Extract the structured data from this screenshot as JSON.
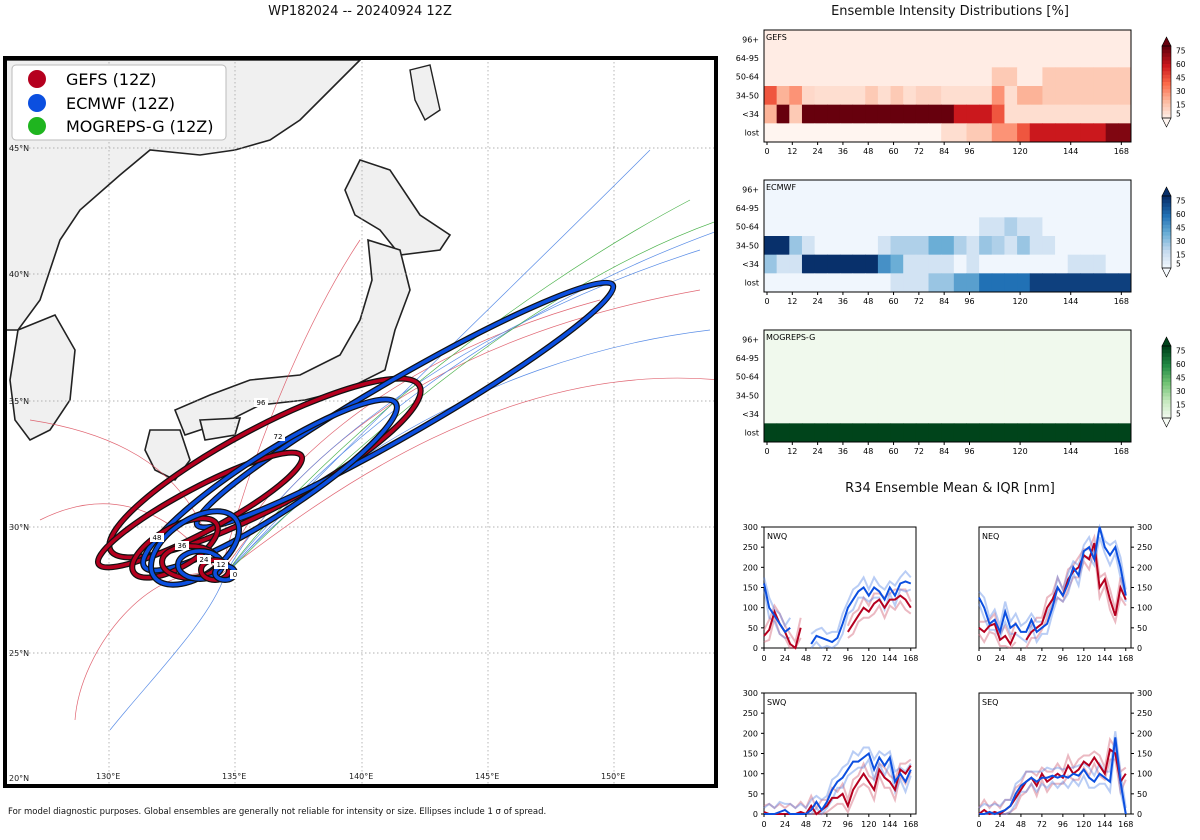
{
  "page": {
    "title": "WP182024 -- 20240924 12Z",
    "footer": "For model diagnostic purposes. Global ensembles are generally not reliable for intensity or size. Ellipses include 1 σ of spread."
  },
  "map": {
    "lat_labels": [
      "45°N",
      "40°N",
      "35°N",
      "30°N",
      "25°N",
      "20°N"
    ],
    "lon_labels": [
      "130°E",
      "135°E",
      "140°E",
      "145°E",
      "150°E"
    ],
    "legend": [
      {
        "label": "GEFS (12Z)",
        "color": "#b5001f"
      },
      {
        "label": "ECMWF (12Z)",
        "color": "#0b4fe0"
      },
      {
        "label": "MOGREPS-G (12Z)",
        "color": "#1fb51f"
      }
    ],
    "ellipse_labels": [
      "96",
      "72",
      "48",
      "36",
      "24",
      "12",
      "0"
    ]
  },
  "intensity": {
    "title": "Ensemble Intensity Distributions [%]",
    "row_labels": [
      "96+",
      "64-95",
      "50-64",
      "34-50",
      "<34",
      "lost"
    ],
    "x_ticks": [
      "0",
      "12",
      "24",
      "36",
      "48",
      "60",
      "72",
      "84",
      "96",
      "120",
      "144",
      "168"
    ],
    "colorbar_ticks": [
      "75",
      "60",
      "45",
      "30",
      "15",
      "5"
    ],
    "panels": [
      {
        "name": "GEFS",
        "palette": "Reds"
      },
      {
        "name": "ECMWF",
        "palette": "Blues"
      },
      {
        "name": "MOGREPS-G",
        "palette": "Greens"
      }
    ]
  },
  "r34": {
    "title": "R34 Ensemble Mean & IQR [nm]",
    "y_ticks": [
      "300",
      "250",
      "200",
      "150",
      "100",
      "50",
      "0"
    ],
    "x_ticks": [
      "0",
      "24",
      "48",
      "72",
      "96",
      "120",
      "144",
      "168"
    ],
    "panels": [
      "NWQ",
      "NEQ",
      "SWQ",
      "SEQ"
    ]
  },
  "chart_data": [
    {
      "type": "heatmap",
      "title": "GEFS",
      "x": [
        0,
        6,
        12,
        18,
        24,
        30,
        36,
        42,
        48,
        54,
        60,
        66,
        72,
        78,
        84,
        90,
        96,
        102,
        108,
        114,
        120,
        126,
        132,
        138,
        144,
        150,
        156,
        162,
        168
      ],
      "rows": [
        "96+",
        "64-95",
        "50-64",
        "34-50",
        "<34",
        "lost"
      ],
      "values": [
        [
          3,
          3,
          3,
          3,
          3,
          3,
          3,
          3,
          3,
          3,
          3,
          3,
          3,
          3,
          3,
          3,
          3,
          3,
          3,
          3,
          3,
          3,
          3,
          3,
          3,
          3,
          3,
          3,
          3
        ],
        [
          3,
          3,
          3,
          3,
          3,
          3,
          3,
          3,
          3,
          3,
          3,
          3,
          3,
          3,
          3,
          3,
          3,
          3,
          3,
          3,
          3,
          3,
          3,
          3,
          3,
          3,
          3,
          3,
          3
        ],
        [
          3,
          3,
          3,
          3,
          3,
          3,
          3,
          3,
          3,
          3,
          3,
          3,
          3,
          3,
          3,
          3,
          3,
          3,
          15,
          15,
          3,
          3,
          15,
          15,
          15,
          15,
          15,
          15,
          15
        ],
        [
          45,
          22,
          30,
          10,
          8,
          8,
          8,
          8,
          15,
          8,
          15,
          8,
          12,
          12,
          8,
          8,
          8,
          8,
          30,
          8,
          22,
          22,
          15,
          15,
          15,
          15,
          15,
          15,
          15
        ],
        [
          22,
          85,
          15,
          85,
          85,
          85,
          85,
          85,
          85,
          85,
          85,
          85,
          85,
          85,
          85,
          60,
          60,
          60,
          45,
          8,
          8,
          8,
          8,
          8,
          8,
          8,
          8,
          8,
          8
        ],
        [
          0,
          0,
          0,
          0,
          0,
          0,
          0,
          0,
          0,
          0,
          0,
          0,
          0,
          0,
          8,
          8,
          15,
          15,
          30,
          30,
          45,
          60,
          60,
          60,
          60,
          60,
          60,
          75,
          75
        ]
      ],
      "xlabel": "",
      "ylabel": ""
    },
    {
      "type": "heatmap",
      "title": "ECMWF",
      "x": [
        0,
        6,
        12,
        18,
        24,
        30,
        36,
        42,
        48,
        54,
        60,
        66,
        72,
        78,
        84,
        90,
        96,
        102,
        108,
        114,
        120,
        126,
        132,
        138,
        144,
        150,
        156,
        162,
        168
      ],
      "rows": [
        "96+",
        "64-95",
        "50-64",
        "34-50",
        "<34",
        "lost"
      ],
      "values": [
        [
          3,
          3,
          3,
          3,
          3,
          3,
          3,
          3,
          3,
          3,
          3,
          3,
          3,
          3,
          3,
          3,
          3,
          3,
          3,
          3,
          3,
          3,
          3,
          3,
          3,
          3,
          3,
          3,
          3
        ],
        [
          3,
          3,
          3,
          3,
          3,
          3,
          3,
          3,
          3,
          3,
          3,
          3,
          3,
          3,
          3,
          3,
          3,
          3,
          3,
          3,
          3,
          3,
          3,
          3,
          3,
          3,
          3,
          3,
          3
        ],
        [
          3,
          3,
          3,
          3,
          3,
          3,
          3,
          3,
          3,
          3,
          3,
          3,
          3,
          3,
          3,
          3,
          3,
          15,
          15,
          25,
          15,
          15,
          3,
          3,
          3,
          3,
          3,
          3,
          3
        ],
        [
          85,
          85,
          30,
          15,
          3,
          3,
          3,
          3,
          3,
          15,
          25,
          25,
          25,
          40,
          40,
          25,
          15,
          30,
          25,
          15,
          30,
          15,
          15,
          3,
          3,
          3,
          3,
          3,
          3
        ],
        [
          30,
          15,
          15,
          85,
          85,
          85,
          85,
          85,
          85,
          50,
          40,
          15,
          15,
          15,
          15,
          3,
          15,
          3,
          3,
          3,
          3,
          3,
          3,
          3,
          15,
          15,
          15,
          3,
          3
        ],
        [
          3,
          3,
          3,
          3,
          3,
          3,
          3,
          3,
          3,
          3,
          15,
          15,
          15,
          30,
          30,
          45,
          45,
          60,
          60,
          60,
          60,
          75,
          75,
          75,
          75,
          75,
          75,
          75,
          75
        ]
      ],
      "xlabel": "",
      "ylabel": ""
    },
    {
      "type": "heatmap",
      "title": "MOGREPS-G",
      "x": [
        0,
        6,
        12,
        18,
        24,
        30,
        36,
        42,
        48,
        54,
        60,
        66,
        72,
        78,
        84,
        90,
        96,
        102,
        108,
        114,
        120,
        126,
        132,
        138,
        144,
        150,
        156,
        162,
        168
      ],
      "rows": [
        "96+",
        "64-95",
        "50-64",
        "34-50",
        "<34",
        "lost"
      ],
      "values": [
        [
          3,
          3,
          3,
          3,
          3,
          3,
          3,
          3,
          3,
          3,
          3,
          3,
          3,
          3,
          3,
          3,
          3,
          3,
          3,
          3,
          3,
          3,
          3,
          3,
          3,
          3,
          3,
          3,
          3
        ],
        [
          3,
          3,
          3,
          3,
          3,
          3,
          3,
          3,
          3,
          3,
          3,
          3,
          3,
          3,
          3,
          3,
          3,
          3,
          3,
          3,
          3,
          3,
          3,
          3,
          3,
          3,
          3,
          3,
          3
        ],
        [
          3,
          3,
          3,
          3,
          3,
          3,
          3,
          3,
          3,
          3,
          3,
          3,
          3,
          3,
          3,
          3,
          3,
          3,
          3,
          3,
          3,
          3,
          3,
          3,
          3,
          3,
          3,
          3,
          3
        ],
        [
          3,
          3,
          3,
          3,
          3,
          3,
          3,
          3,
          3,
          3,
          3,
          3,
          3,
          3,
          3,
          3,
          3,
          3,
          3,
          3,
          3,
          3,
          3,
          3,
          3,
          3,
          3,
          3,
          3
        ],
        [
          3,
          3,
          3,
          3,
          3,
          3,
          3,
          3,
          3,
          3,
          3,
          3,
          3,
          3,
          3,
          3,
          3,
          3,
          3,
          3,
          3,
          3,
          3,
          3,
          3,
          3,
          3,
          3,
          3
        ],
        [
          100,
          100,
          100,
          100,
          100,
          100,
          100,
          100,
          100,
          100,
          100,
          100,
          100,
          100,
          100,
          100,
          100,
          100,
          100,
          100,
          100,
          100,
          100,
          100,
          100,
          100,
          100,
          100,
          100
        ]
      ],
      "xlabel": "",
      "ylabel": ""
    },
    {
      "type": "line",
      "title": "NWQ",
      "ylim": [
        0,
        300
      ],
      "xlim": [
        0,
        174
      ],
      "x": [
        0,
        6,
        12,
        18,
        24,
        30,
        36,
        42,
        48,
        54,
        60,
        66,
        72,
        78,
        84,
        90,
        96,
        102,
        108,
        114,
        120,
        126,
        132,
        138,
        144,
        150,
        156,
        162,
        168
      ],
      "series": [
        {
          "name": "GEFS mean",
          "values": [
            30,
            45,
            90,
            60,
            40,
            10,
            0,
            50,
            null,
            null,
            null,
            null,
            null,
            null,
            null,
            null,
            40,
            60,
            80,
            100,
            90,
            110,
            120,
            100,
            120,
            120,
            130,
            120,
            100
          ]
        },
        {
          "name": "ECMWF mean",
          "values": [
            160,
            100,
            80,
            60,
            40,
            50,
            null,
            null,
            null,
            10,
            30,
            25,
            20,
            15,
            25,
            60,
            100,
            120,
            140,
            150,
            130,
            150,
            140,
            120,
            150,
            130,
            160,
            165,
            160
          ]
        }
      ]
    },
    {
      "type": "line",
      "title": "NEQ",
      "ylim": [
        0,
        300
      ],
      "xlim": [
        0,
        174
      ],
      "x": [
        0,
        6,
        12,
        18,
        24,
        30,
        36,
        42,
        48,
        54,
        60,
        66,
        72,
        78,
        84,
        90,
        96,
        102,
        108,
        114,
        120,
        126,
        132,
        138,
        144,
        150,
        156,
        162,
        168
      ],
      "series": [
        {
          "name": "GEFS mean",
          "values": [
            50,
            40,
            55,
            60,
            20,
            30,
            10,
            40,
            null,
            20,
            40,
            50,
            60,
            100,
            120,
            150,
            130,
            170,
            190,
            200,
            230,
            220,
            260,
            150,
            170,
            120,
            80,
            150,
            120
          ]
        },
        {
          "name": "ECMWF mean",
          "values": [
            125,
            100,
            60,
            70,
            40,
            90,
            50,
            60,
            40,
            40,
            70,
            40,
            50,
            60,
            100,
            150,
            130,
            160,
            200,
            180,
            240,
            250,
            220,
            300,
            250,
            230,
            250,
            200,
            130
          ]
        }
      ]
    },
    {
      "type": "line",
      "title": "SWQ",
      "ylim": [
        0,
        300
      ],
      "xlim": [
        0,
        174
      ],
      "x": [
        0,
        6,
        12,
        18,
        24,
        30,
        36,
        42,
        48,
        54,
        60,
        66,
        72,
        78,
        84,
        90,
        96,
        102,
        108,
        114,
        120,
        126,
        132,
        138,
        144,
        150,
        156,
        162,
        168
      ],
      "series": [
        {
          "name": "GEFS mean",
          "values": [
            5,
            0,
            0,
            0,
            0,
            0,
            0,
            5,
            0,
            20,
            0,
            10,
            20,
            40,
            40,
            50,
            20,
            60,
            80,
            100,
            80,
            60,
            110,
            90,
            80,
            60,
            110,
            100,
            120
          ]
        },
        {
          "name": "ECMWF mean",
          "values": [
            0,
            0,
            0,
            5,
            10,
            0,
            0,
            0,
            0,
            10,
            30,
            10,
            30,
            60,
            80,
            90,
            110,
            130,
            130,
            140,
            150,
            110,
            140,
            120,
            140,
            80,
            100,
            80,
            110
          ]
        }
      ]
    },
    {
      "type": "line",
      "title": "SEQ",
      "ylim": [
        0,
        300
      ],
      "xlim": [
        0,
        174
      ],
      "x": [
        0,
        6,
        12,
        18,
        24,
        30,
        36,
        42,
        48,
        54,
        60,
        66,
        72,
        78,
        84,
        90,
        96,
        102,
        108,
        114,
        120,
        126,
        132,
        138,
        144,
        150,
        156,
        162,
        168
      ],
      "series": [
        {
          "name": "GEFS mean",
          "values": [
            0,
            10,
            0,
            5,
            0,
            10,
            20,
            40,
            60,
            80,
            90,
            70,
            100,
            80,
            90,
            100,
            90,
            120,
            100,
            110,
            130,
            120,
            140,
            120,
            100,
            160,
            150,
            80,
            100
          ]
        },
        {
          "name": "ECMWF mean",
          "values": [
            0,
            0,
            5,
            0,
            5,
            10,
            20,
            50,
            70,
            80,
            90,
            80,
            90,
            90,
            95,
            90,
            95,
            90,
            100,
            95,
            110,
            90,
            80,
            100,
            90,
            80,
            190,
            80,
            0
          ]
        }
      ]
    }
  ]
}
